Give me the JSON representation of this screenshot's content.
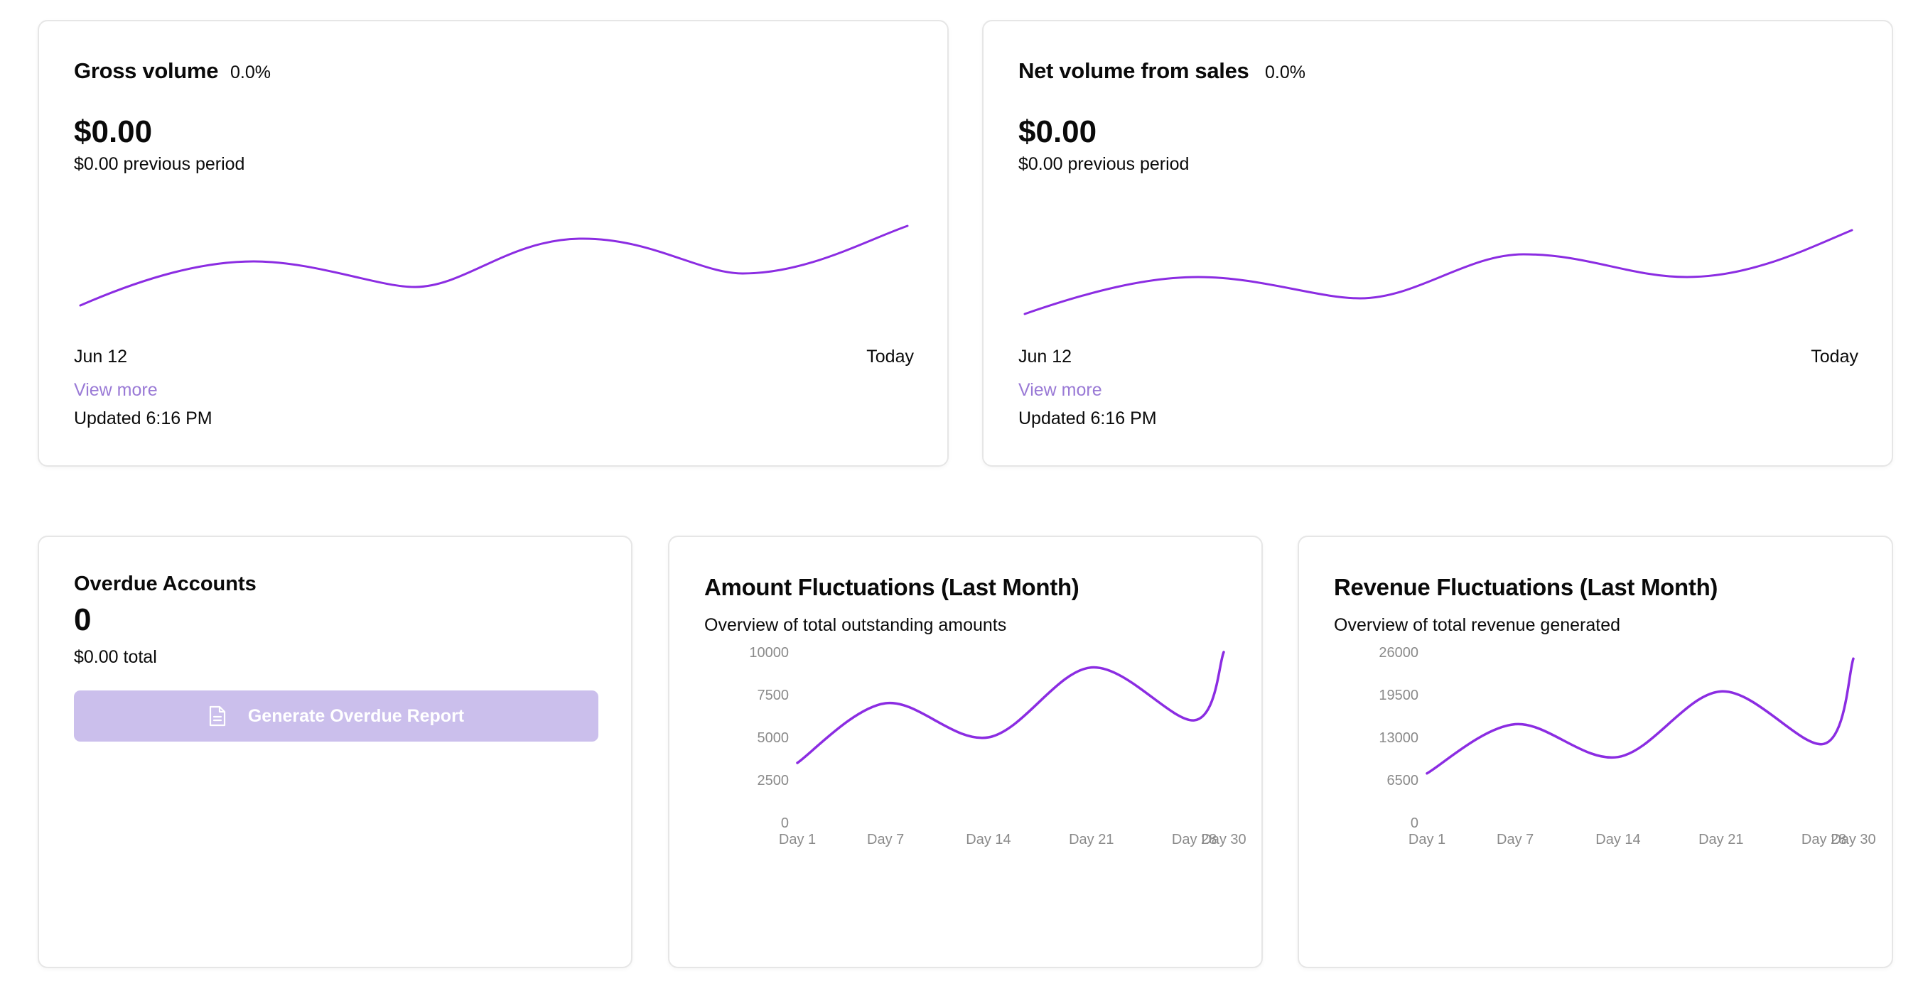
{
  "colors": {
    "accent": "#8b2ce2",
    "link": "#9a7ad6",
    "button_bg": "#cbbfec"
  },
  "gross": {
    "title": "Gross volume",
    "change": "0.0%",
    "amount": "$0.00",
    "previous": "$0.00 previous period",
    "start_label": "Jun 12",
    "end_label": "Today",
    "link": "View more",
    "updated": "Updated 6:16 PM"
  },
  "net": {
    "title": "Net volume from sales",
    "change": "0.0%",
    "amount": "$0.00",
    "previous": "$0.00 previous period",
    "start_label": "Jun 12",
    "end_label": "Today",
    "link": "View more",
    "updated": "Updated 6:16 PM"
  },
  "overdue": {
    "title": "Overdue Accounts",
    "count": "0",
    "total": "$0.00 total",
    "button_label": "Generate Overdue Report",
    "button_icon": "file-text-icon"
  },
  "chart_data": [
    {
      "type": "line",
      "title": "Amount Fluctuations (Last Month)",
      "subtitle": "Overview of total outstanding amounts",
      "categories": [
        "Day 1",
        "Day 7",
        "Day 14",
        "Day 21",
        "Day 28",
        "Day 30"
      ],
      "values": [
        3500,
        7000,
        5000,
        9100,
        6000,
        10000
      ],
      "y_ticks": [
        "10000",
        "7500",
        "5000",
        "2500",
        "0"
      ],
      "ylim": [
        0,
        10000
      ],
      "grid": false
    },
    {
      "type": "line",
      "title": "Revenue Fluctuations (Last Month)",
      "subtitle": "Overview of total revenue generated",
      "categories": [
        "Day 1",
        "Day 7",
        "Day 14",
        "Day 21",
        "Day 28",
        "Day 30"
      ],
      "values": [
        7500,
        15000,
        10000,
        20000,
        12000,
        25000
      ],
      "y_ticks": [
        "26000",
        "19500",
        "13000",
        "6500",
        "0"
      ],
      "ylim": [
        0,
        26000
      ],
      "grid": false
    }
  ]
}
